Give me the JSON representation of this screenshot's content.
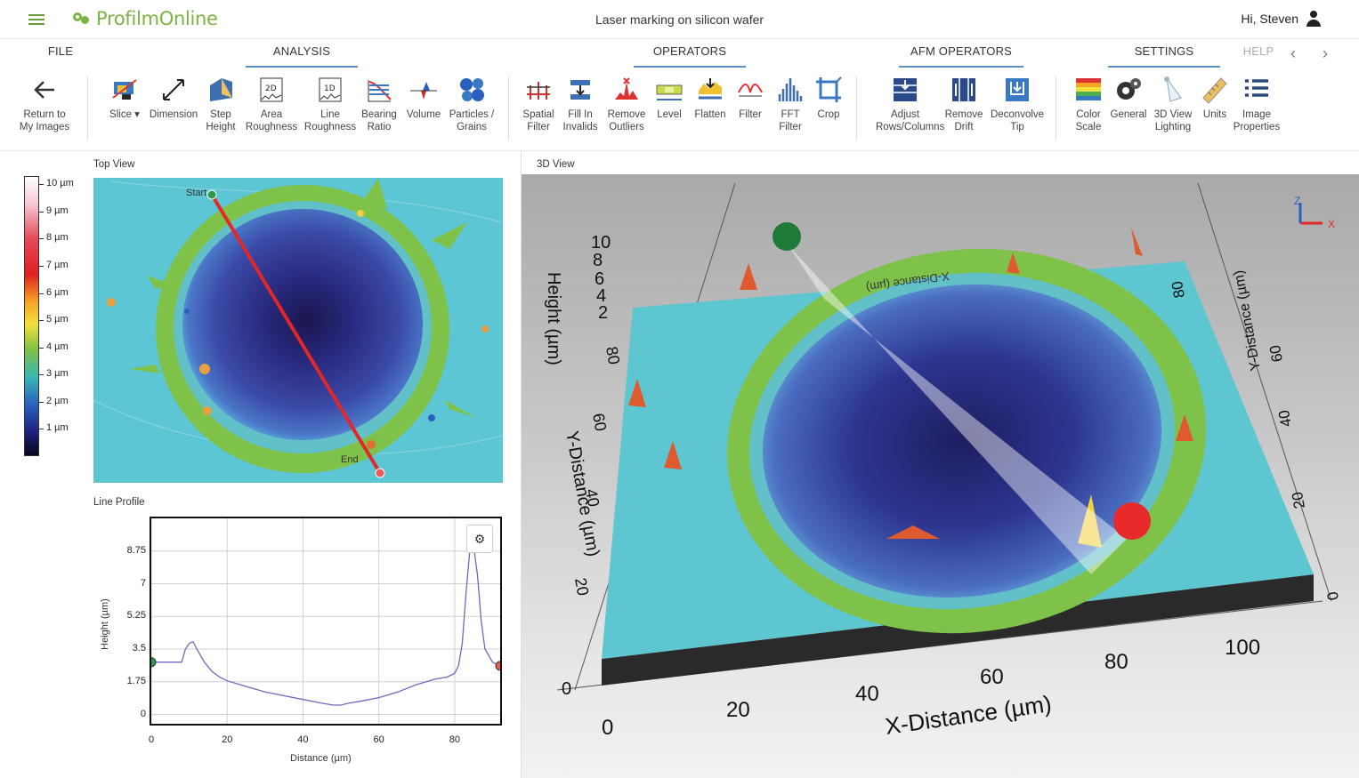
{
  "header": {
    "app_name": "ProfilmOnline",
    "document_title": "Laser marking on silicon wafer",
    "greeting": "Hi, Steven"
  },
  "tabs": {
    "file": "FILE",
    "analysis": "ANALYSIS",
    "operators": "OPERATORS",
    "afm_operators": "AFM OPERATORS",
    "settings": "SETTINGS",
    "help": "HELP"
  },
  "toolbar": {
    "return": "Return to\nMy Images",
    "slice": "Slice ▾",
    "dimension": "Dimension",
    "step_height": "Step\nHeight",
    "area_roughness": "Area\nRoughness",
    "line_roughness": "Line\nRoughness",
    "bearing_ratio": "Bearing\nRatio",
    "volume": "Volume",
    "particles": "Particles /\nGrains",
    "spatial_filter": "Spatial\nFilter",
    "fill_in_invalids": "Fill In\nInvalids",
    "remove_outliers": "Remove\nOutliers",
    "level": "Level",
    "flatten": "Flatten",
    "filter": "Filter",
    "fft_filter": "FFT\nFilter",
    "crop": "Crop",
    "adjust_rows": "Adjust\nRows/Columns",
    "remove_drift": "Remove\nDrift",
    "deconvolve_tip": "Deconvolve\nTip",
    "color_scale": "Color\nScale",
    "general": "General",
    "lighting": "3D View\nLighting",
    "units": "Units",
    "image_properties": "Image\nProperties"
  },
  "panels": {
    "top_view": "Top View",
    "line_profile": "Line Profile",
    "view_3d": "3D View"
  },
  "colorbar_labels": [
    "10 µm",
    "9 µm",
    "8 µm",
    "7 µm",
    "6 µm",
    "5 µm",
    "4 µm",
    "3 µm",
    "2 µm",
    "1 µm"
  ],
  "topview_markers": {
    "start": "Start",
    "end": "End"
  },
  "colors": {
    "accent": "#5b8fc8",
    "brand_green": "#7cb342",
    "slice_line": "#e02828",
    "profile_line": "#6b6bbf",
    "start_marker": "#2e9a4e",
    "end_marker": "#e85a5a"
  },
  "view3d": {
    "x_title": "X-Distance (µm)",
    "y_title": "Y-Distance (µm)",
    "z_title": "Height (µm)",
    "x_ticks": [
      "0",
      "20",
      "40",
      "60",
      "80",
      "100"
    ],
    "y_ticks_left": [
      "20",
      "40",
      "60",
      "80"
    ],
    "y_ticks_right": [
      "0",
      "20",
      "40",
      "60",
      "80"
    ],
    "z_ticks": [
      "0",
      "2",
      "4",
      "6",
      "8",
      "10"
    ],
    "back_title": "X-Distance (µm)",
    "axis_x": "X",
    "axis_z": "Z"
  },
  "chart_data": {
    "type": "line",
    "title": "Line Profile",
    "xlabel": "Distance (µm)",
    "ylabel": "Height (µm)",
    "xlim": [
      0,
      92
    ],
    "ylim": [
      -0.5,
      10.5
    ],
    "x_ticks": [
      "0",
      "20",
      "40",
      "60",
      "80"
    ],
    "y_ticks": [
      "0",
      "1.75",
      "3.5",
      "5.25",
      "7",
      "8.75"
    ],
    "series": [
      {
        "x": [
          0,
          3,
          8,
          9,
          10,
          11,
          12,
          14,
          16,
          18,
          20,
          25,
          30,
          35,
          40,
          45,
          48,
          50,
          52,
          55,
          60,
          65,
          70,
          75,
          78,
          80,
          81,
          82,
          83,
          84,
          85,
          86,
          87,
          88,
          90,
          92
        ],
        "y": [
          2.8,
          2.8,
          2.8,
          3.5,
          3.8,
          3.9,
          3.5,
          2.8,
          2.3,
          2.0,
          1.8,
          1.5,
          1.2,
          1.0,
          0.8,
          0.6,
          0.5,
          0.5,
          0.6,
          0.7,
          0.9,
          1.2,
          1.6,
          1.9,
          2.0,
          2.2,
          2.6,
          3.8,
          6.5,
          8.8,
          9.0,
          7.5,
          5.0,
          3.5,
          2.8,
          2.6
        ]
      }
    ],
    "grid": true
  }
}
